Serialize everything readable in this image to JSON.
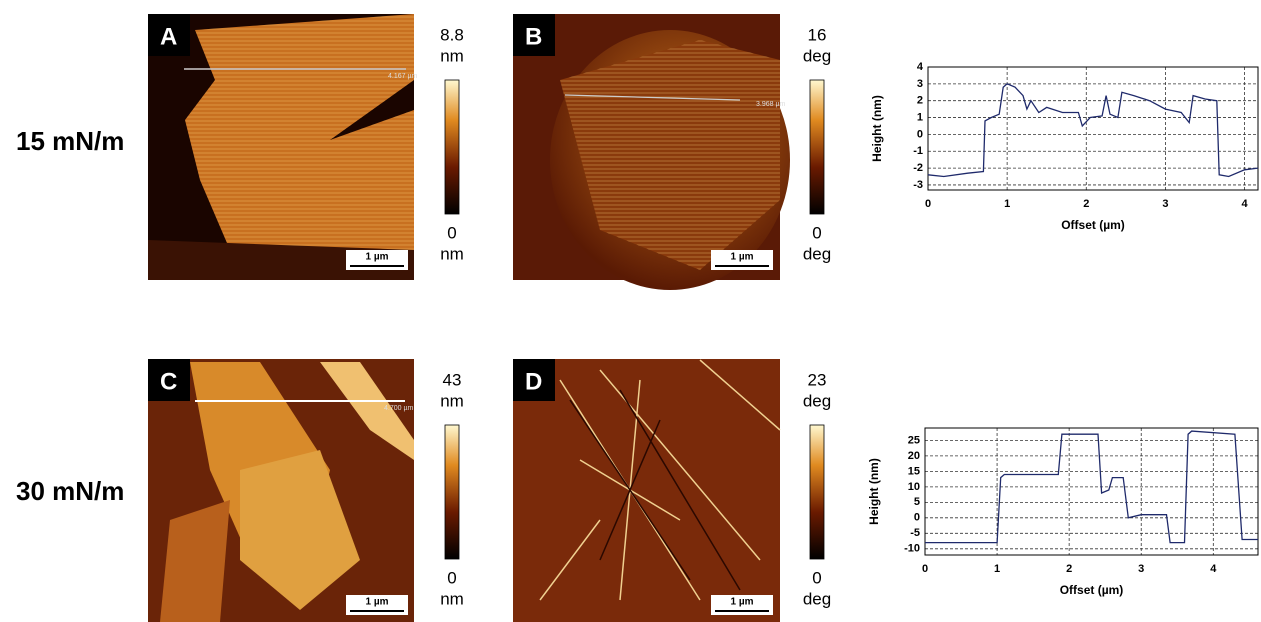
{
  "rows": [
    {
      "label": "15 mN/m"
    },
    {
      "label": "30 mN/m"
    }
  ],
  "panels": [
    {
      "letter": "A",
      "colorbar_max": "8.8",
      "colorbar_min": "0",
      "unit": "nm",
      "scale_bar": "1 µm",
      "profile_length": "4.167 µm"
    },
    {
      "letter": "B",
      "colorbar_max": "16",
      "colorbar_min": "0",
      "unit": "deg",
      "scale_bar": "1 µm",
      "profile_length": "3.968 µm"
    },
    {
      "letter": "C",
      "colorbar_max": "43",
      "colorbar_min": "0",
      "unit": "nm",
      "scale_bar": "1 µm",
      "profile_length": "4.700 µm"
    },
    {
      "letter": "D",
      "colorbar_max": "23",
      "colorbar_min": "0",
      "unit": "deg",
      "scale_bar": "1 µm"
    }
  ],
  "chart_data": [
    {
      "type": "line",
      "ylabel": "Height (nm)",
      "xlabel": "Offset (µm)",
      "x": [
        0,
        0.2,
        0.5,
        0.7,
        0.72,
        0.8,
        0.9,
        0.95,
        1.0,
        1.1,
        1.2,
        1.25,
        1.3,
        1.4,
        1.5,
        1.7,
        1.9,
        1.95,
        2.05,
        2.2,
        2.25,
        2.3,
        2.4,
        2.45,
        2.6,
        2.8,
        3.0,
        3.2,
        3.3,
        3.35,
        3.5,
        3.65,
        3.68,
        3.8,
        4.0,
        4.17
      ],
      "values": [
        -2.4,
        -2.5,
        -2.3,
        -2.2,
        0.8,
        1.0,
        1.2,
        2.8,
        3.0,
        2.8,
        2.3,
        1.5,
        2.0,
        1.3,
        1.6,
        1.3,
        1.3,
        0.5,
        1.0,
        1.1,
        2.3,
        1.2,
        1.0,
        2.5,
        2.3,
        2.0,
        1.5,
        1.3,
        0.7,
        2.3,
        2.1,
        2.0,
        -2.4,
        -2.5,
        -2.1,
        -2.0
      ],
      "color": "#1f2a6b",
      "xlim": [
        0,
        4.17
      ],
      "ylim": [
        -3.3,
        4
      ],
      "xticks": [
        0,
        1,
        2,
        3,
        4
      ],
      "yticks": [
        -3,
        -2,
        -1,
        0,
        1,
        2,
        3,
        4
      ],
      "grid": true
    },
    {
      "type": "line",
      "ylabel": "Height (nm)",
      "xlabel": "Offset (µm)",
      "x": [
        0,
        1.0,
        1.05,
        1.1,
        1.85,
        1.9,
        2.4,
        2.45,
        2.55,
        2.6,
        2.75,
        2.82,
        3.0,
        3.35,
        3.4,
        3.6,
        3.65,
        3.7,
        4.3,
        4.4,
        4.62
      ],
      "values": [
        -8,
        -8,
        13,
        14,
        14,
        27,
        27,
        8,
        9,
        13,
        13,
        0,
        1,
        1,
        -8,
        -8,
        27,
        28,
        27,
        -7,
        -7
      ],
      "color": "#1f2a6b",
      "xlim": [
        0,
        4.62
      ],
      "ylim": [
        -12,
        29
      ],
      "xticks": [
        0,
        1,
        2,
        3,
        4
      ],
      "yticks": [
        -10,
        -5,
        0,
        5,
        10,
        15,
        20,
        25
      ],
      "grid": true
    }
  ]
}
